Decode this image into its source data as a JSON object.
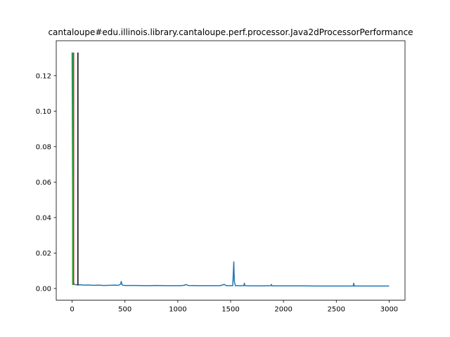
{
  "chart_data": {
    "type": "line",
    "title": "cantaloupe#edu.illinois.library.cantaloupe.perf.processor.Java2dProcessorPerformance",
    "xlabel": "",
    "ylabel": "",
    "xlim": [
      -150,
      3150
    ],
    "ylim": [
      -0.0066,
      0.1397
    ],
    "x_ticks": [
      0,
      500,
      1000,
      1500,
      2000,
      2500,
      3000
    ],
    "y_ticks": [
      0.0,
      0.02,
      0.04,
      0.06,
      0.08,
      0.1,
      0.12
    ],
    "y_tick_labels": [
      "0.00",
      "0.02",
      "0.04",
      "0.06",
      "0.08",
      "0.10",
      "0.12"
    ],
    "grid": false,
    "series": [
      {
        "color": "#1f77b4",
        "x": [
          0,
          5,
          10,
          15,
          20,
          30,
          50,
          80,
          120,
          150,
          200,
          250,
          300,
          350,
          400,
          440,
          460,
          465,
          470,
          480,
          500,
          600,
          700,
          800,
          900,
          1000,
          1050,
          1080,
          1100,
          1200,
          1300,
          1400,
          1440,
          1460,
          1500,
          1520,
          1525,
          1530,
          1535,
          1545,
          1600,
          1625,
          1630,
          1635,
          1700,
          1800,
          1880,
          1885,
          1890,
          2000,
          2100,
          2200,
          2300,
          2400,
          2500,
          2600,
          2660,
          2665,
          2670,
          2700,
          2800,
          2900,
          3000
        ],
        "y": [
          0.133,
          0.05,
          0.012,
          0.003,
          0.0025,
          0.0022,
          0.002,
          0.0021,
          0.0019,
          0.002,
          0.0018,
          0.0019,
          0.0017,
          0.0018,
          0.0019,
          0.0018,
          0.0025,
          0.004,
          0.0025,
          0.0018,
          0.0017,
          0.0017,
          0.0016,
          0.0017,
          0.0016,
          0.0016,
          0.0017,
          0.0022,
          0.0017,
          0.0016,
          0.0016,
          0.0016,
          0.0023,
          0.0016,
          0.0016,
          0.0016,
          0.008,
          0.015,
          0.004,
          0.0016,
          0.0016,
          0.0016,
          0.003,
          0.0016,
          0.0015,
          0.0015,
          0.0016,
          0.0023,
          0.0015,
          0.0015,
          0.0015,
          0.0015,
          0.0014,
          0.0014,
          0.0014,
          0.0014,
          0.0014,
          0.003,
          0.0014,
          0.0014,
          0.0014,
          0.0014,
          0.0014
        ]
      }
    ],
    "vertical_lines": [
      {
        "x": 5,
        "y": [
          0.002,
          0.133
        ],
        "color": "#2ca02c"
      },
      {
        "x": 15,
        "y": [
          0.002,
          0.133
        ],
        "color": "#d62728"
      },
      {
        "x": 55,
        "y": [
          0.002,
          0.133
        ],
        "color": "#000000"
      }
    ]
  }
}
